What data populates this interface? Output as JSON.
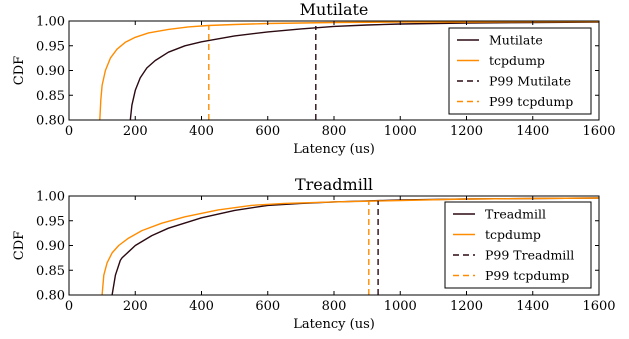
{
  "chart_data": [
    {
      "type": "line",
      "title": "Mutilate",
      "xlabel": "Latency (us)",
      "ylabel": "CDF",
      "xlim": [
        0,
        1600
      ],
      "ylim": [
        0.8,
        1.0
      ],
      "xticks": [
        "0",
        "200",
        "400",
        "600",
        "800",
        "1000",
        "1200",
        "1400",
        "1600"
      ],
      "yticks": [
        "0.80",
        "0.85",
        "0.90",
        "0.95",
        "1.00"
      ],
      "legend_position": "right",
      "series": [
        {
          "name": "Mutilate",
          "color": "#2b0a12",
          "style": "solid",
          "x": [
            185,
            190,
            200,
            215,
            235,
            260,
            300,
            350,
            400,
            500,
            600,
            700,
            800,
            900,
            1000,
            1200,
            1400,
            1600
          ],
          "y": [
            0.8,
            0.83,
            0.86,
            0.885,
            0.905,
            0.92,
            0.937,
            0.95,
            0.958,
            0.97,
            0.978,
            0.984,
            0.989,
            0.992,
            0.994,
            0.996,
            0.997,
            0.998
          ]
        },
        {
          "name": "tcpdump",
          "color": "#ff8c00",
          "style": "solid",
          "x": [
            93,
            96,
            100,
            110,
            125,
            145,
            170,
            200,
            240,
            300,
            360,
            420,
            500,
            600,
            800,
            1000,
            1200,
            1600
          ],
          "y": [
            0.8,
            0.84,
            0.87,
            0.9,
            0.925,
            0.943,
            0.957,
            0.967,
            0.976,
            0.983,
            0.988,
            0.991,
            0.993,
            0.995,
            0.997,
            0.998,
            0.998,
            0.999
          ]
        },
        {
          "name": "P99 Mutilate",
          "color": "#2b0a12",
          "style": "dashed",
          "x": [
            745,
            745
          ],
          "y": [
            0.8,
            0.99
          ]
        },
        {
          "name": "P99 tcpdump",
          "color": "#ff8c00",
          "style": "dashed",
          "x": [
            422,
            422
          ],
          "y": [
            0.8,
            0.99
          ]
        }
      ]
    },
    {
      "type": "line",
      "title": "Treadmill",
      "xlabel": "Latency (us)",
      "ylabel": "CDF",
      "xlim": [
        0,
        1600
      ],
      "ylim": [
        0.8,
        1.0
      ],
      "xticks": [
        "0",
        "200",
        "400",
        "600",
        "800",
        "1000",
        "1200",
        "1400",
        "1600"
      ],
      "yticks": [
        "0.80",
        "0.85",
        "0.90",
        "0.95",
        "1.00"
      ],
      "legend_position": "right",
      "series": [
        {
          "name": "Treadmill",
          "color": "#2b0a12",
          "style": "solid",
          "x": [
            130,
            140,
            155,
            160,
            200,
            250,
            300,
            400,
            500,
            600,
            700,
            800,
            900,
            1000,
            1200,
            1400,
            1600
          ],
          "y": [
            0.8,
            0.84,
            0.87,
            0.875,
            0.9,
            0.92,
            0.935,
            0.956,
            0.971,
            0.981,
            0.985,
            0.988,
            0.99,
            0.992,
            0.994,
            0.995,
            0.996
          ]
        },
        {
          "name": "tcpdump",
          "color": "#ff8c00",
          "style": "solid",
          "x": [
            100,
            105,
            115,
            130,
            150,
            180,
            220,
            280,
            350,
            450,
            550,
            650,
            800,
            1000,
            1200,
            1400,
            1600
          ],
          "y": [
            0.8,
            0.84,
            0.865,
            0.885,
            0.9,
            0.915,
            0.93,
            0.945,
            0.958,
            0.972,
            0.981,
            0.985,
            0.988,
            0.991,
            0.994,
            0.995,
            0.996
          ]
        },
        {
          "name": "P99 Treadmill",
          "color": "#2b0a12",
          "style": "dashed",
          "x": [
            933,
            933
          ],
          "y": [
            0.8,
            0.99
          ]
        },
        {
          "name": "P99 tcpdump",
          "color": "#ff8c00",
          "style": "dashed",
          "x": [
            905,
            905
          ],
          "y": [
            0.8,
            0.99
          ]
        }
      ]
    }
  ]
}
